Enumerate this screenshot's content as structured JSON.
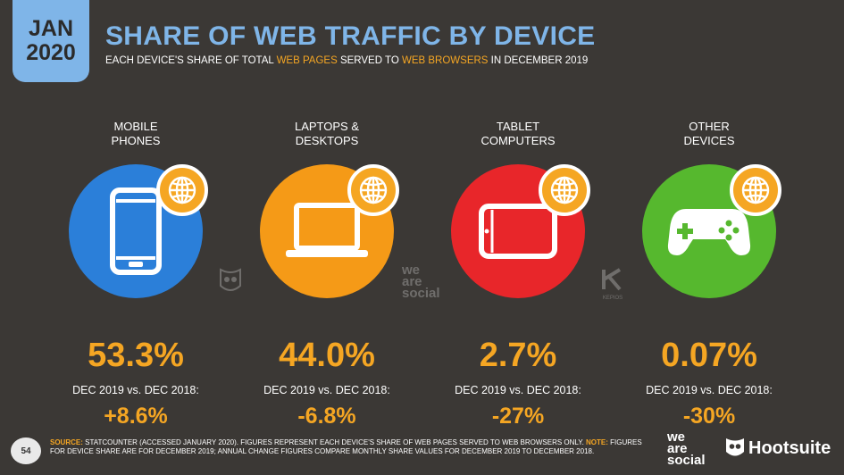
{
  "badge": {
    "month": "JAN",
    "year": "2020"
  },
  "header": {
    "title": "SHARE OF WEB TRAFFIC BY DEVICE",
    "subtitle_pre": "EACH DEVICE'S SHARE OF TOTAL ",
    "subtitle_hl1": "WEB PAGES",
    "subtitle_mid": " SERVED TO ",
    "subtitle_hl2": "WEB BROWSERS",
    "subtitle_post": " IN DECEMBER 2019"
  },
  "chart_data": {
    "type": "table",
    "categories": [
      {
        "line1": "MOBILE",
        "line2": "PHONES",
        "share": "53.3%",
        "change_label": "DEC 2019 vs. DEC 2018:",
        "change": "+8.6%",
        "color": "#2b7fd9",
        "icon": "smartphone-icon"
      },
      {
        "line1": "LAPTOPS &",
        "line2": "DESKTOPS",
        "share": "44.0%",
        "change_label": "DEC 2019 vs. DEC 2018:",
        "change": "-6.8%",
        "color": "#f59a17",
        "icon": "laptop-icon"
      },
      {
        "line1": "TABLET",
        "line2": "COMPUTERS",
        "share": "2.7%",
        "change_label": "DEC 2019 vs. DEC 2018:",
        "change": "-27%",
        "color": "#e8262a",
        "icon": "tablet-icon"
      },
      {
        "line1": "OTHER",
        "line2": "DEVICES",
        "share": "0.07%",
        "change_label": "DEC 2019 vs. DEC 2018:",
        "change": "-30%",
        "color": "#56b82e",
        "icon": "gamepad-icon"
      }
    ]
  },
  "watermarks": {
    "we": "we",
    "are": "are",
    "social": "social",
    "kepios": "KEPIOS"
  },
  "footer": {
    "page": "54",
    "source_label": "SOURCE:",
    "source_text": " STATCOUNTER (ACCESSED JANUARY 2020). FIGURES REPRESENT EACH DEVICE'S SHARE OF WEB PAGES SERVED TO WEB BROWSERS ONLY. ",
    "note_label": "NOTE:",
    "note_text": " FIGURES FOR DEVICE SHARE ARE FOR DECEMBER 2019; ANNUAL CHANGE FIGURES COMPARE MONTHLY SHARE VALUES FOR DECEMBER 2019 TO DECEMBER 2018.",
    "logo_we": "we",
    "logo_are": "are",
    "logo_social": "social",
    "logo_hootsuite": "Hootsuite"
  }
}
